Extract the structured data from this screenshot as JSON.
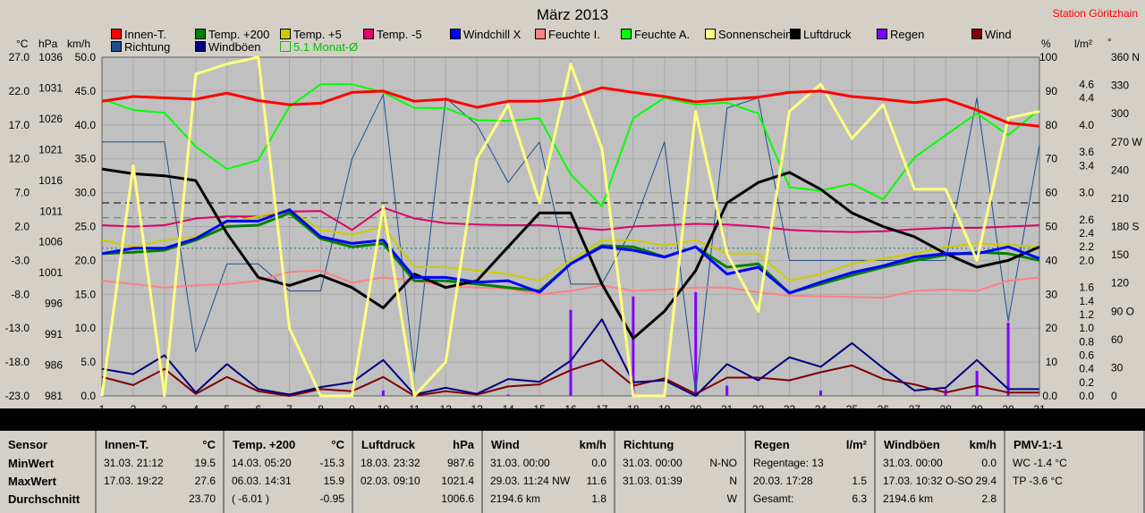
{
  "title": "März 2013",
  "station": "Station Göritzhain",
  "axis_units": {
    "temp": "°C",
    "hpa": "hPa",
    "kmh": "km/h",
    "pct": "%",
    "lm2": "l/m²",
    "deg": "°"
  },
  "legend_row1": [
    {
      "name": "Innen-T.",
      "color": "#ff0000"
    },
    {
      "name": "Temp. +200",
      "color": "#008000"
    },
    {
      "name": "Temp. +5",
      "color": "#cccc00"
    },
    {
      "name": "Temp. -5",
      "color": "#e0006a"
    },
    {
      "name": "Windchill X",
      "color": "#0000ff"
    },
    {
      "name": "Feuchte I.",
      "color": "#ff8080"
    },
    {
      "name": "Feuchte A.",
      "color": "#00ff00"
    },
    {
      "name": "Sonnenschein",
      "color": "#ffff80"
    },
    {
      "name": "Luftdruck",
      "color": "#000000"
    },
    {
      "name": "Regen",
      "color": "#8000ff"
    },
    {
      "name": "Wind",
      "color": "#800000"
    }
  ],
  "legend_row2": [
    {
      "name": "Richtung",
      "color": "#1f4e8c"
    },
    {
      "name": "Windböen",
      "color": "#000080"
    },
    {
      "name": "5.1 Monat-Ø",
      "color": "#00c000"
    }
  ],
  "chart_data": {
    "type": "line",
    "title": "März 2013",
    "x": [
      1,
      2,
      3,
      4,
      5,
      6,
      7,
      8,
      9,
      10,
      11,
      12,
      13,
      14,
      15,
      16,
      17,
      18,
      19,
      20,
      21,
      22,
      23,
      24,
      25,
      26,
      27,
      28,
      29,
      30,
      31
    ],
    "axes": {
      "kmh_ticks": [
        "0.0",
        "5.0",
        "10.0",
        "15.0",
        "20.0",
        "25.0",
        "30.0",
        "35.0",
        "40.0",
        "45.0",
        "50.0"
      ],
      "temp_ticks": [
        "-23.0",
        "-18.0",
        "-13.0",
        "-8.0",
        "-3.0",
        "2.0",
        "7.0",
        "12.0",
        "17.0",
        "22.0",
        "27.0"
      ],
      "hpa_ticks": [
        "981",
        "986",
        "991",
        "996",
        "1001",
        "1006",
        "1011",
        "1016",
        "1021",
        "1026",
        "1031",
        "1036"
      ],
      "pct_ticks": [
        "0.0",
        "10",
        "20",
        "30",
        "40",
        "50",
        "60",
        "70",
        "80",
        "90",
        "100"
      ],
      "rain_ticks": [
        "0.0",
        "0.2",
        "0.4",
        "0.6",
        "0.8",
        "1.0",
        "1.2",
        "1.4",
        "1.6",
        "2.0",
        "2.2",
        "2.4",
        "2.6",
        "3.0",
        "3.4",
        "3.6",
        "4.0",
        "4.4",
        "4.6"
      ],
      "deg_ticks": [
        "0",
        "30",
        "60",
        "90 O",
        "120",
        "150",
        "180 S",
        "210",
        "240",
        "270 W",
        "300",
        "330",
        "360 N"
      ],
      "kmh_range": [
        0,
        50
      ]
    },
    "series": [
      {
        "name": "Innen-T.",
        "color": "#ff0000",
        "width": 3,
        "values": [
          43.5,
          44.2,
          44.0,
          43.8,
          44.7,
          43.6,
          43.0,
          43.2,
          44.8,
          45.0,
          43.5,
          43.8,
          42.6,
          43.5,
          43.5,
          44.0,
          45.5,
          44.8,
          44.2,
          43.4,
          43.8,
          44.1,
          44.8,
          45.0,
          44.2,
          43.8,
          43.3,
          43.8,
          42.2,
          40.3,
          39.8
        ]
      },
      {
        "name": "Temp. +200",
        "color": "#008000",
        "width": 3,
        "values": [
          21.0,
          21.2,
          21.5,
          23.0,
          25.0,
          25.2,
          27.0,
          23.2,
          22.0,
          22.5,
          17.0,
          17.0,
          16.5,
          16.0,
          15.5,
          19.5,
          22.2,
          22.0,
          20.5,
          22.0,
          19.0,
          19.5,
          15.2,
          16.5,
          17.8,
          19.0,
          20.0,
          20.8,
          21.2,
          21.0,
          20.0
        ]
      },
      {
        "name": "Temp. +5",
        "color": "#cccc00",
        "width": 2,
        "values": [
          23.0,
          22.0,
          23.0,
          23.5,
          25.5,
          26.5,
          27.5,
          24.5,
          23.8,
          25.0,
          19.0,
          19.0,
          18.5,
          18.0,
          17.0,
          20.0,
          23.0,
          23.0,
          22.2,
          23.0,
          21.0,
          21.0,
          17.0,
          18.0,
          19.5,
          20.3,
          21.0,
          22.0,
          22.5,
          22.3,
          22.0
        ]
      },
      {
        "name": "Temp. -5",
        "color": "#e0006a",
        "width": 2,
        "values": [
          25.2,
          25.0,
          25.2,
          26.2,
          26.5,
          26.5,
          27.2,
          27.3,
          24.5,
          27.8,
          26.2,
          25.5,
          25.3,
          25.2,
          25.2,
          24.9,
          24.5,
          25.0,
          25.2,
          25.4,
          25.3,
          25.0,
          24.5,
          24.3,
          24.2,
          24.3,
          24.6,
          24.8,
          24.8,
          25.0,
          25.2
        ]
      },
      {
        "name": "Windchill X",
        "color": "#0000ff",
        "width": 3,
        "values": [
          21.0,
          21.8,
          21.8,
          23.2,
          25.8,
          25.8,
          27.5,
          23.5,
          22.5,
          23.0,
          17.5,
          17.5,
          16.8,
          17.0,
          15.3,
          19.5,
          22.0,
          21.5,
          20.5,
          22.0,
          18.0,
          19.0,
          15.2,
          16.8,
          18.2,
          19.2,
          20.5,
          21.0,
          21.0,
          22.0,
          20.3
        ]
      },
      {
        "name": "Feuchte I.",
        "color": "#ff8080",
        "width": 2,
        "values": [
          17.0,
          16.5,
          16.0,
          16.3,
          16.5,
          17.0,
          18.3,
          18.5,
          16.7,
          17.5,
          17.0,
          16.2,
          16.0,
          15.8,
          15.0,
          15.5,
          16.3,
          15.5,
          15.7,
          16.0,
          16.0,
          15.3,
          14.8,
          14.7,
          14.6,
          14.5,
          15.5,
          15.7,
          15.5,
          17.0,
          17.5
        ]
      },
      {
        "name": "Feuchte A.",
        "color": "#00ff00",
        "width": 2,
        "values": [
          43.8,
          42.2,
          41.8,
          36.8,
          33.5,
          34.8,
          42.7,
          46.0,
          46.0,
          44.8,
          42.5,
          42.5,
          40.7,
          40.6,
          41.0,
          32.7,
          28.0,
          41.0,
          44.0,
          43.0,
          43.3,
          41.7,
          30.8,
          30.3,
          31.3,
          29.0,
          35.2,
          38.5,
          41.7,
          38.5,
          42.3
        ]
      },
      {
        "name": "Sonnenschein",
        "color": "#ffff80",
        "width": 3,
        "values": [
          0.0,
          34.0,
          0.0,
          47.5,
          49.0,
          50.0,
          10.0,
          0.0,
          0.0,
          28.0,
          0.0,
          5.0,
          35.0,
          43.0,
          28.5,
          49.0,
          36.5,
          0.0,
          0.0,
          42.0,
          21.0,
          12.5,
          42.0,
          46.0,
          38.0,
          43.0,
          30.5,
          30.5,
          20.0,
          41.0,
          42.0
        ]
      },
      {
        "name": "Luftdruck",
        "color": "#000000",
        "width": 3,
        "values": [
          33.5,
          32.8,
          32.5,
          31.8,
          24.0,
          17.5,
          16.3,
          17.8,
          16.0,
          13.0,
          18.0,
          16.0,
          17.0,
          22.0,
          27.0,
          27.0,
          16.5,
          8.5,
          12.5,
          18.5,
          28.5,
          31.5,
          33.0,
          30.5,
          27.0,
          25.0,
          23.5,
          21.0,
          19.0,
          20.0,
          22.0
        ]
      },
      {
        "name": "Windböen",
        "color": "#000080",
        "width": 2,
        "values": [
          4.0,
          3.2,
          6.0,
          0.5,
          4.7,
          1.0,
          0.2,
          1.3,
          2.0,
          5.3,
          0.2,
          1.2,
          0.3,
          2.5,
          2.1,
          5.2,
          11.3,
          2.0,
          2.3,
          0.0,
          4.7,
          2.3,
          5.7,
          4.3,
          7.8,
          4.1,
          0.8,
          1.2,
          5.3,
          1.0,
          1.0
        ]
      },
      {
        "name": "Wind",
        "color": "#800000",
        "width": 2,
        "values": [
          2.8,
          1.6,
          4.0,
          0.3,
          2.8,
          0.7,
          0.0,
          1.0,
          0.7,
          2.8,
          0.0,
          0.7,
          0.2,
          1.4,
          1.7,
          3.8,
          5.3,
          1.5,
          2.6,
          0.3,
          2.7,
          2.7,
          2.3,
          3.5,
          4.5,
          2.5,
          1.7,
          0.5,
          1.5,
          0.5,
          0.5
        ]
      },
      {
        "name": "Richtung",
        "color": "#1f4e8c",
        "width": 1,
        "values": [
          37.5,
          37.5,
          37.5,
          6.5,
          19.5,
          19.5,
          15.5,
          15.5,
          35.0,
          44.5,
          3.5,
          44.0,
          40.0,
          31.5,
          37.5,
          16.5,
          16.5,
          25.0,
          37.5,
          0.5,
          42.5,
          44.0,
          20.0,
          20.0,
          20.0,
          20.0,
          20.0,
          20.0,
          44.0,
          11.0,
          37.0
        ]
      }
    ],
    "reference_lines": [
      {
        "value": 28.5,
        "color": "#000000",
        "style": "dashed"
      },
      {
        "value": 26.3,
        "color": "#00c000",
        "style": "dashed"
      },
      {
        "value": 21.8,
        "color": "#008080",
        "style": "dotted"
      }
    ],
    "rain_bars": [
      {
        "x": 10,
        "value": 0.8
      },
      {
        "x": 14,
        "value": 0.2
      },
      {
        "x": 16,
        "value": 12.7
      },
      {
        "x": 18,
        "value": 14.7
      },
      {
        "x": 20,
        "value": 15.3
      },
      {
        "x": 21,
        "value": 1.5
      },
      {
        "x": 24,
        "value": 0.8
      },
      {
        "x": 28,
        "value": 1.0
      },
      {
        "x": 29,
        "value": 3.7
      },
      {
        "x": 30,
        "value": 10.8
      }
    ]
  },
  "panels": [
    {
      "title": "Sensor",
      "unit": "",
      "rows": [
        {
          "label": "MinWert"
        },
        {
          "label": "MaxWert"
        },
        {
          "label": "Durchschnitt"
        }
      ]
    },
    {
      "title": "Innen-T.",
      "unit": "°C",
      "rows": [
        {
          "date": "31.03. 21:12",
          "value": "19.5"
        },
        {
          "date": "17.03. 19:22",
          "value": "27.6"
        },
        {
          "date": "",
          "value": "23.70"
        }
      ]
    },
    {
      "title": "Temp. +200",
      "unit": "°C",
      "rows": [
        {
          "date": "14.03. 05:20",
          "value": "-15.3"
        },
        {
          "date": "06.03. 14:31",
          "value": "15.9"
        },
        {
          "date": "( -6.01 )",
          "value": "-0.95"
        }
      ]
    },
    {
      "title": "Luftdruck",
      "unit": "hPa",
      "rows": [
        {
          "date": "18.03. 23:32",
          "value": "987.6"
        },
        {
          "date": "02.03. 09:10",
          "value": "1021.4"
        },
        {
          "date": "",
          "value": "1006.6"
        }
      ]
    },
    {
      "title": "Wind",
      "unit": "km/h",
      "rows": [
        {
          "date": "31.03. 00:00",
          "value": "0.0"
        },
        {
          "date": "29.03. 11:24 NW",
          "value": "11.6"
        },
        {
          "date": "2194.6 km",
          "value": "1.8"
        }
      ]
    },
    {
      "title": "Richtung",
      "unit": "",
      "rows": [
        {
          "date": "31.03. 00:00",
          "value": "N-NO"
        },
        {
          "date": "31.03. 01:39",
          "value": "N"
        },
        {
          "date": "",
          "value": "W"
        }
      ]
    },
    {
      "title": "Regen",
      "unit": "l/m²",
      "rows": [
        {
          "date": "Regentage: 13",
          "value": ""
        },
        {
          "date": "20.03. 17:28",
          "value": "1.5"
        },
        {
          "date": "Gesamt:",
          "value": "6.3"
        }
      ]
    },
    {
      "title": "Windböen",
      "unit": "km/h",
      "rows": [
        {
          "date": "31.03. 00:00",
          "value": "0.0"
        },
        {
          "date": "17.03. 10:32 O-SO",
          "value": "29.4"
        },
        {
          "date": "2194.6 km",
          "value": "2.8"
        }
      ]
    },
    {
      "title": "PMV-1:-1",
      "unit": "",
      "rows": [
        {
          "date": "WC -1.4 °C",
          "value": ""
        },
        {
          "date": "TP -3.6 °C",
          "value": ""
        },
        {
          "date": "",
          "value": ""
        }
      ]
    }
  ]
}
